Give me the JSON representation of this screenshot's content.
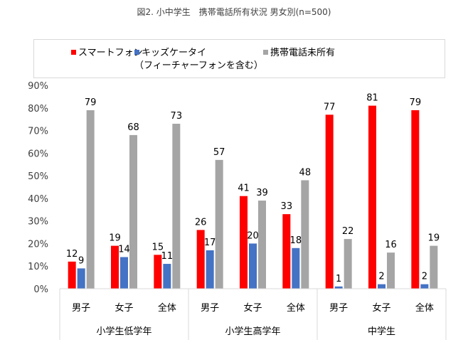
{
  "chart_data": {
    "type": "bar",
    "title": "図2. 小中学生　携帯電話所有状況 男女別(n=500)",
    "groups": [
      "小学生低学年",
      "小学生高学年",
      "中学生"
    ],
    "categories": [
      "男子",
      "女子",
      "全体",
      "男子",
      "女子",
      "全体",
      "男子",
      "女子",
      "全体"
    ],
    "series": [
      {
        "name": "スマートフォン",
        "color": "#ff0000",
        "values": [
          12,
          19,
          15,
          26,
          41,
          33,
          77,
          81,
          79
        ]
      },
      {
        "name": "キッズケータイ",
        "name_line2": "（フィーチャーフォンを含む）",
        "color": "#4472c4",
        "values": [
          9,
          14,
          11,
          17,
          20,
          18,
          1,
          2,
          2
        ]
      },
      {
        "name": "携帯電話未所有",
        "color": "#a5a5a5",
        "values": [
          79,
          68,
          73,
          57,
          39,
          48,
          22,
          16,
          19
        ]
      }
    ],
    "yticks": [
      "0%",
      "10%",
      "20%",
      "30%",
      "40%",
      "50%",
      "60%",
      "70%",
      "80%",
      "90%"
    ],
    "ylim": [
      0,
      90
    ],
    "grid": false,
    "legend": "top"
  }
}
